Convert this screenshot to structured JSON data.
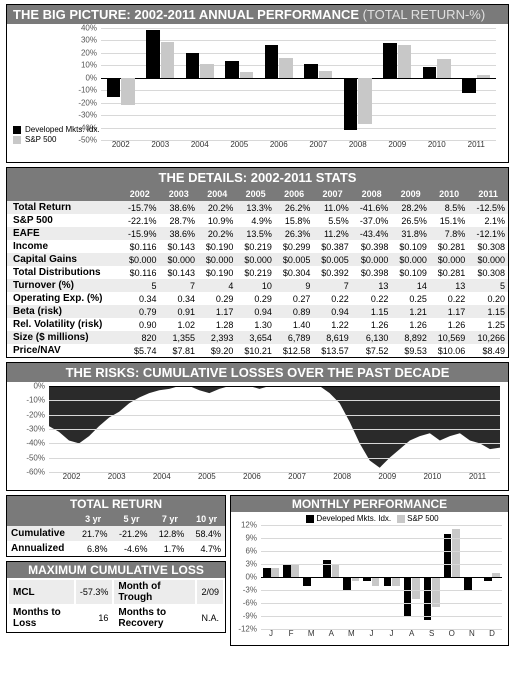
{
  "colors": {
    "series_a": "#000000",
    "series_b": "#c8c8c8",
    "grid": "#d8d8d8",
    "header_bg": "#7a7a7a",
    "risk_fill": "#2a2a2a"
  },
  "big_picture": {
    "title": "THE BIG PICTURE: 2002-2011 ANNUAL PERFORMANCE",
    "subtitle": "(TOTAL RETURN-%)",
    "type": "bar",
    "ylim": [
      -50,
      40
    ],
    "yticks": [
      40,
      30,
      20,
      10,
      0,
      -10,
      -20,
      -30,
      -40,
      -50
    ],
    "years": [
      "2002",
      "2003",
      "2004",
      "2005",
      "2006",
      "2007",
      "2008",
      "2009",
      "2010",
      "2011"
    ],
    "legend": [
      "Developed Mkts. Idx.",
      "S&P 500"
    ],
    "series_a": [
      -15.7,
      38.6,
      20.2,
      13.3,
      26.2,
      11.0,
      -41.6,
      28.2,
      8.5,
      -12.5
    ],
    "series_b": [
      -22.1,
      28.7,
      10.9,
      4.9,
      15.8,
      5.5,
      -37.0,
      26.5,
      15.1,
      2.1
    ]
  },
  "details": {
    "title": "THE DETAILS: 2002-2011 STATS",
    "years": [
      "2002",
      "2003",
      "2004",
      "2005",
      "2006",
      "2007",
      "2008",
      "2009",
      "2010",
      "2011"
    ],
    "rows": [
      {
        "label": "Total Return",
        "vals": [
          "-15.7%",
          "38.6%",
          "20.2%",
          "13.3%",
          "26.2%",
          "11.0%",
          "-41.6%",
          "28.2%",
          "8.5%",
          "-12.5%"
        ]
      },
      {
        "label": "S&P 500",
        "vals": [
          "-22.1%",
          "28.7%",
          "10.9%",
          "4.9%",
          "15.8%",
          "5.5%",
          "-37.0%",
          "26.5%",
          "15.1%",
          "2.1%"
        ]
      },
      {
        "label": "EAFE",
        "vals": [
          "-15.9%",
          "38.6%",
          "20.2%",
          "13.5%",
          "26.3%",
          "11.2%",
          "-43.4%",
          "31.8%",
          "7.8%",
          "-12.1%"
        ]
      },
      {
        "label": "Income",
        "vals": [
          "$0.116",
          "$0.143",
          "$0.190",
          "$0.219",
          "$0.299",
          "$0.387",
          "$0.398",
          "$0.109",
          "$0.281",
          "$0.308"
        ]
      },
      {
        "label": "Capital Gains",
        "vals": [
          "$0.000",
          "$0.000",
          "$0.000",
          "$0.000",
          "$0.005",
          "$0.005",
          "$0.000",
          "$0.000",
          "$0.000",
          "$0.000"
        ]
      },
      {
        "label": "Total Distributions",
        "vals": [
          "$0.116",
          "$0.143",
          "$0.190",
          "$0.219",
          "$0.304",
          "$0.392",
          "$0.398",
          "$0.109",
          "$0.281",
          "$0.308"
        ]
      },
      {
        "label": "Turnover (%)",
        "vals": [
          "5",
          "7",
          "4",
          "10",
          "9",
          "7",
          "13",
          "14",
          "13",
          "5"
        ]
      },
      {
        "label": "Operating Exp. (%)",
        "vals": [
          "0.34",
          "0.34",
          "0.29",
          "0.29",
          "0.27",
          "0.22",
          "0.22",
          "0.25",
          "0.22",
          "0.20"
        ]
      },
      {
        "label": "Beta (risk)",
        "vals": [
          "0.79",
          "0.91",
          "1.17",
          "0.94",
          "0.89",
          "0.94",
          "1.15",
          "1.21",
          "1.17",
          "1.15"
        ]
      },
      {
        "label": "Rel. Volatility (risk)",
        "vals": [
          "0.90",
          "1.02",
          "1.28",
          "1.30",
          "1.40",
          "1.22",
          "1.26",
          "1.26",
          "1.26",
          "1.25"
        ]
      },
      {
        "label": "Size ($ millions)",
        "vals": [
          "820",
          "1,355",
          "2,393",
          "3,654",
          "6,789",
          "8,619",
          "6,130",
          "8,892",
          "10,569",
          "10,266"
        ]
      },
      {
        "label": "Price/NAV",
        "vals": [
          "$5.74",
          "$7.81",
          "$9.20",
          "$10.21",
          "$12.58",
          "$13.57",
          "$7.52",
          "$9.53",
          "$10.06",
          "$8.49"
        ]
      }
    ]
  },
  "risks": {
    "title": "THE RISKS: CUMULATIVE LOSSES OVER THE PAST DECADE",
    "ylim": [
      -60,
      0
    ],
    "yticks": [
      0,
      -10,
      -20,
      -30,
      -40,
      -50,
      -60
    ],
    "years": [
      "2002",
      "2003",
      "2004",
      "2005",
      "2006",
      "2007",
      "2008",
      "2009",
      "2010",
      "2011"
    ],
    "samples": [
      -28,
      -32,
      -38,
      -40,
      -35,
      -28,
      -22,
      -18,
      -12,
      -8,
      -5,
      -3,
      -2,
      0,
      0,
      -3,
      -5,
      -2,
      0,
      0,
      0,
      -2,
      0,
      0,
      0,
      0,
      0,
      0,
      -5,
      -12,
      -25,
      -40,
      -52,
      -57,
      -50,
      -44,
      -38,
      -35,
      -33,
      -38,
      -35,
      -33,
      -38,
      -40,
      -44,
      -43
    ]
  },
  "total_return": {
    "title": "TOTAL RETURN",
    "cols": [
      "3 yr",
      "5 yr",
      "7 yr",
      "10 yr"
    ],
    "rows": [
      {
        "label": "Cumulative",
        "vals": [
          "21.7%",
          "-21.2%",
          "12.8%",
          "58.4%"
        ]
      },
      {
        "label": "Annualized",
        "vals": [
          "6.8%",
          "-4.6%",
          "1.7%",
          "4.7%"
        ]
      }
    ]
  },
  "mcl": {
    "title": "MAXIMUM CUMULATIVE LOSS",
    "rows": [
      {
        "l1": "MCL",
        "v1": "-57.3%",
        "l2": "Month of Trough",
        "v2": "2/09"
      },
      {
        "l1": "Months to Loss",
        "v1": "16",
        "l2": "Months to Recovery",
        "v2": "N.A."
      }
    ]
  },
  "monthly": {
    "title": "MONTHLY PERFORMANCE",
    "legend": [
      "Developed Mkts. Idx.",
      "S&P 500"
    ],
    "ylim": [
      -12,
      12
    ],
    "yticks": [
      12,
      9,
      6,
      3,
      0,
      -3,
      -6,
      -9,
      -12
    ],
    "months": [
      "J",
      "F",
      "M",
      "A",
      "M",
      "J",
      "J",
      "A",
      "S",
      "O",
      "N",
      "D"
    ],
    "series_a": [
      2,
      3,
      -2,
      4,
      -3,
      -1,
      -2,
      -9,
      -10,
      10,
      -3,
      -1
    ],
    "series_b": [
      2,
      3,
      0,
      3,
      -1,
      -2,
      -2,
      -5,
      -7,
      11,
      0,
      1
    ]
  }
}
